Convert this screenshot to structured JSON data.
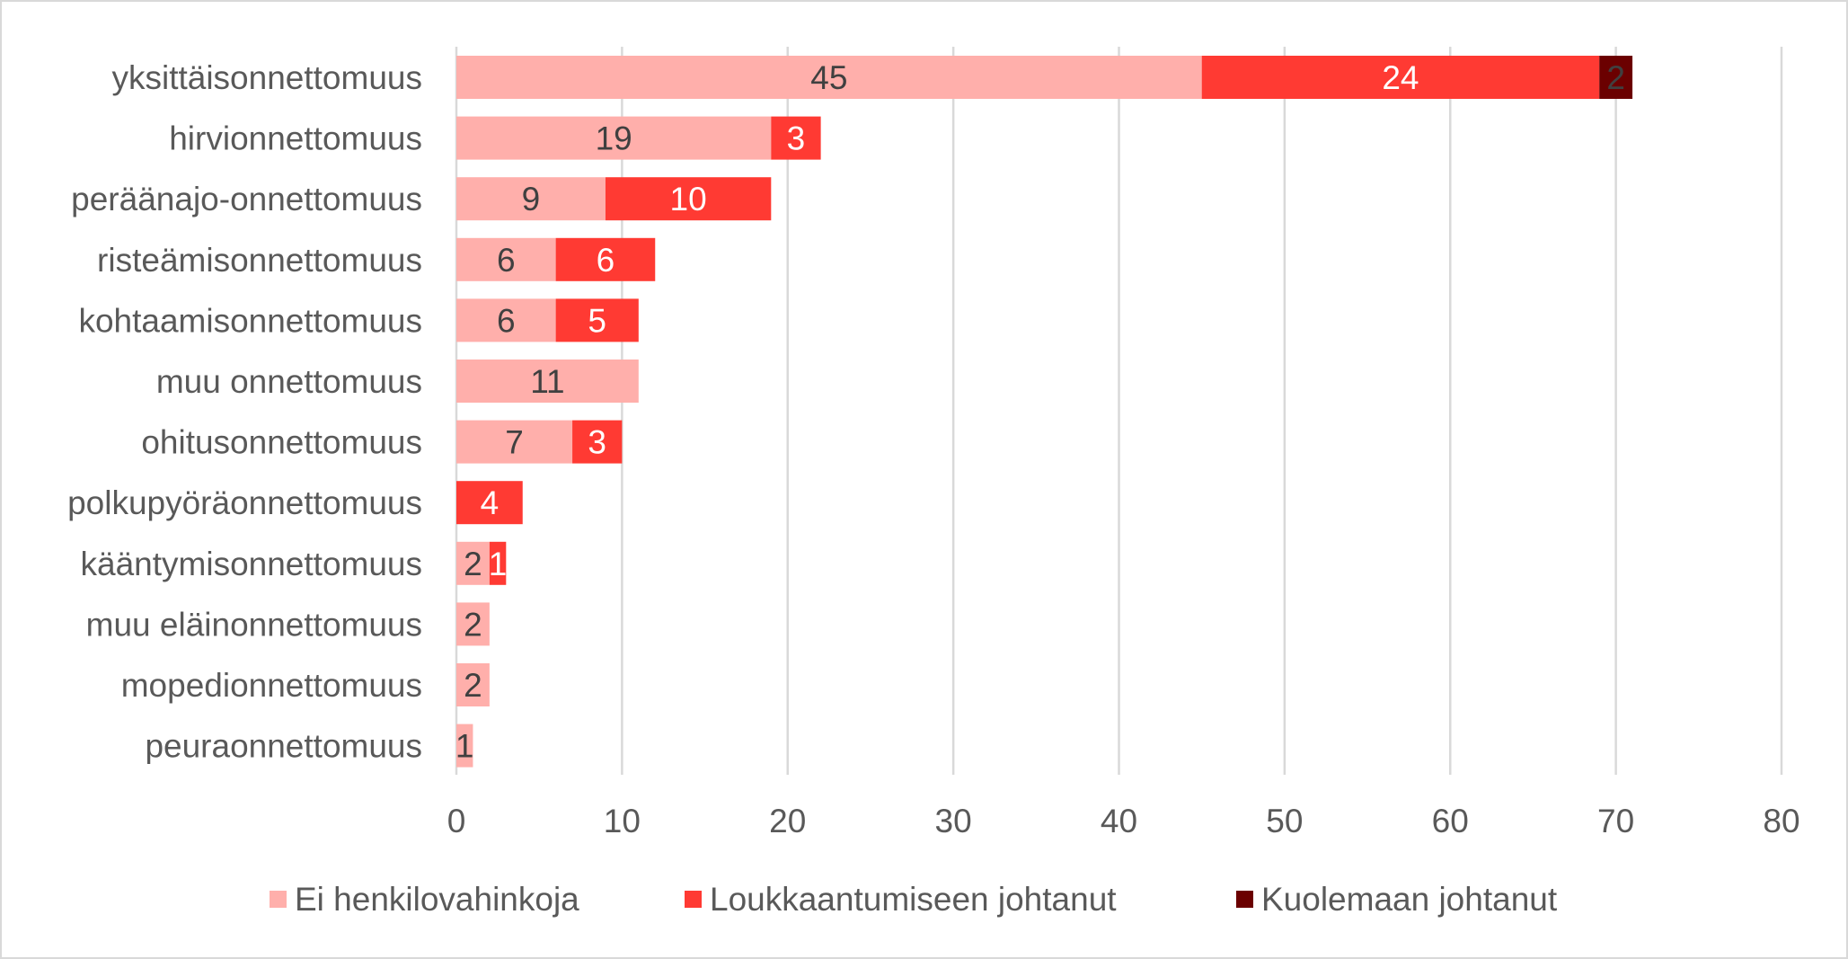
{
  "chart_data": {
    "type": "bar",
    "orientation": "horizontal",
    "stacked": true,
    "categories": [
      "yksittäisonnettomuus",
      "hirvionnettomuus",
      "peräänajo-onnettomuus",
      "risteämisonnettomuus",
      "kohtaamisonnettomuus",
      "muu onnettomuus",
      "ohitusonnettomuus",
      "polkupyöräonnettomuus",
      "kääntymisonnettomuus",
      "muu eläinonnettomuus",
      "mopedionnettomuus",
      "peuraonnettomuus"
    ],
    "series": [
      {
        "name": "Ei henkilovahinkoja",
        "color": "#FFAFAB",
        "label_color": "#404040",
        "values": [
          45,
          19,
          9,
          6,
          6,
          11,
          7,
          0,
          2,
          2,
          2,
          1
        ]
      },
      {
        "name": "Loukkaantumiseen johtanut",
        "color": "#FF3A33",
        "label_color": "#FFFFFF",
        "values": [
          24,
          3,
          10,
          6,
          5,
          0,
          3,
          4,
          1,
          0,
          0,
          0
        ]
      },
      {
        "name": "Kuolemaan johtanut",
        "color": "#6B0000",
        "label_color": "#404040",
        "values": [
          2,
          0,
          0,
          0,
          0,
          0,
          0,
          0,
          0,
          0,
          0,
          0
        ]
      }
    ],
    "xlim": [
      0,
      80
    ],
    "xticks": [
      "0",
      "10",
      "20",
      "30",
      "40",
      "50",
      "60",
      "70",
      "80"
    ],
    "grid": "vertical",
    "legend": "bottom",
    "title": "",
    "xlabel": "",
    "ylabel": ""
  }
}
